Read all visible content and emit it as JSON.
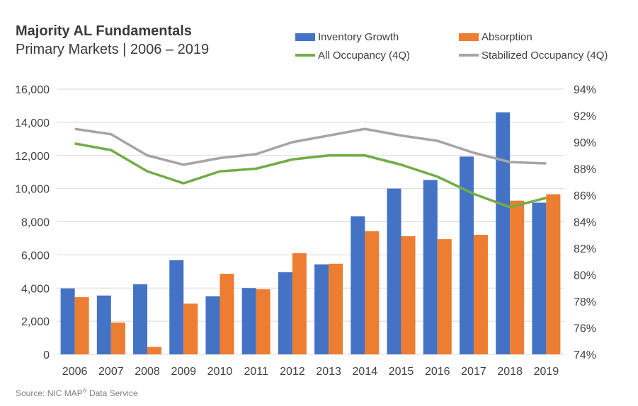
{
  "title": "Majority  AL Fundamentals",
  "subtitle": "Primary Markets | 2006 – 2019",
  "source": {
    "prefix": "Source: NIC MAP",
    "sup": "®",
    "suffix": " Data Service"
  },
  "chart_data": {
    "type": "bar",
    "title": "Majority  AL Fundamentals",
    "subtitle": "Primary Markets | 2006 – 2019",
    "categories": [
      "2006",
      "2007",
      "2008",
      "2009",
      "2010",
      "2011",
      "2012",
      "2013",
      "2014",
      "2015",
      "2016",
      "2017",
      "2018",
      "2019"
    ],
    "series": [
      {
        "name": "Inventory Growth",
        "type": "bar",
        "axis": "left",
        "color": "#4472C4",
        "values": [
          3980,
          3550,
          4230,
          5680,
          3500,
          4000,
          4960,
          5430,
          8330,
          10000,
          10520,
          11930,
          14600,
          9150
        ]
      },
      {
        "name": "Absorption",
        "type": "bar",
        "axis": "left",
        "color": "#ED7D31",
        "values": [
          3450,
          1920,
          450,
          3060,
          4860,
          3930,
          6100,
          5470,
          7430,
          7130,
          6950,
          7210,
          9270,
          9660
        ]
      },
      {
        "name": "All Occupancy (4Q)",
        "type": "line",
        "axis": "right",
        "color": "#70AD47",
        "values": [
          89.9,
          89.4,
          87.8,
          86.9,
          87.8,
          88.0,
          88.7,
          89.0,
          89.0,
          88.3,
          87.4,
          86.1,
          85.1,
          85.8
        ]
      },
      {
        "name": "Stabilized Occupancy (4Q)",
        "type": "line",
        "axis": "right",
        "color": "#A5A5A5",
        "values": [
          91.0,
          90.6,
          89.0,
          88.3,
          88.8,
          89.1,
          90.0,
          90.5,
          91.0,
          90.5,
          90.1,
          89.2,
          88.5,
          88.4
        ]
      }
    ],
    "left_axis": {
      "min": 0,
      "max": 16000,
      "ticks": [
        "0",
        "2,000",
        "4,000",
        "6,000",
        "8,000",
        "10,000",
        "12,000",
        "14,000",
        "16,000"
      ],
      "tick_values": [
        0,
        2000,
        4000,
        6000,
        8000,
        10000,
        12000,
        14000,
        16000
      ]
    },
    "right_axis": {
      "min": 74,
      "max": 94,
      "ticks": [
        "74%",
        "76%",
        "78%",
        "80%",
        "82%",
        "84%",
        "86%",
        "88%",
        "90%",
        "92%",
        "94%"
      ],
      "tick_values": [
        74,
        76,
        78,
        80,
        82,
        84,
        86,
        88,
        90,
        92,
        94
      ]
    },
    "grid": true,
    "legend_position": "top-right"
  }
}
